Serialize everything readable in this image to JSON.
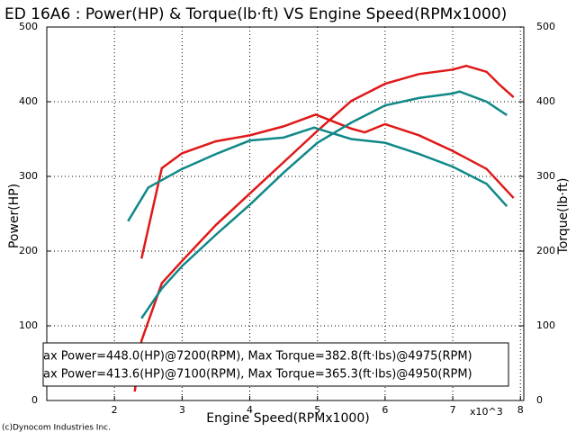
{
  "chart_data": {
    "type": "line",
    "title": "ED 16A6 : Power(HP) & Torque(lb·ft) VS Engine Speed(RPMx1000)",
    "y_label": "Power(HP)",
    "y2_label": "Torque(lb·ft)",
    "x_label": "Engine Speed(RPMx1000)",
    "x_multiplier": "x10^3",
    "credit": "(c)Dynocom Industries Inc.",
    "xlim": [
      1,
      8.05
    ],
    "xticks": [
      2,
      3,
      4,
      5,
      6,
      7,
      8
    ],
    "ylim": [
      0,
      500
    ],
    "yticks": [
      0,
      100,
      200,
      300,
      400,
      500
    ],
    "y2lim": [
      0,
      500
    ],
    "y2ticks": [
      0,
      100,
      200,
      300,
      400,
      500
    ],
    "grid": true,
    "series": [
      {
        "name": "ax Power=448.0(HP)@7200(RPM), Max Torque=382.8(ft·lbs)@4975(RPM)",
        "color": "#e01818",
        "x": [
          2.3,
          2.4,
          2.7,
          3,
          3.5,
          4,
          4.5,
          5,
          5.5,
          6,
          6.5,
          7,
          7.2,
          7.5,
          7.7,
          7.9
        ],
        "power": [
          12,
          80,
          157,
          187,
          235,
          277,
          319,
          361,
          401,
          424,
          437,
          443,
          448,
          440,
          422,
          406
        ],
        "tx": [
          2.4,
          2.7,
          3,
          3.5,
          4,
          4.5,
          4.975,
          5.5,
          5.7,
          6,
          6.5,
          7,
          7.5,
          7.9
        ],
        "torque": [
          190,
          311,
          331,
          347,
          355,
          367,
          382.8,
          364,
          359,
          370,
          355,
          334,
          310,
          271
        ]
      },
      {
        "name": "ax Power=413.6(HP)@7100(RPM), Max Torque=365.3(ft·lbs)@4950(RPM)",
        "color": "#108888",
        "x": [
          2.4,
          2.7,
          3,
          3.5,
          4,
          4.5,
          5,
          5.5,
          6,
          6.5,
          7,
          7.1,
          7.5,
          7.8
        ],
        "power": [
          110,
          150,
          180,
          222,
          262,
          305,
          345,
          372,
          395,
          405,
          411,
          413.6,
          400,
          382
        ],
        "tx": [
          2.2,
          2.5,
          3,
          3.5,
          4,
          4.5,
          4.95,
          5.5,
          6,
          6.5,
          7,
          7.5,
          7.8
        ],
        "torque": [
          240,
          285,
          310,
          330,
          348,
          352,
          365.3,
          350,
          345,
          330,
          313,
          290,
          260
        ]
      }
    ]
  }
}
